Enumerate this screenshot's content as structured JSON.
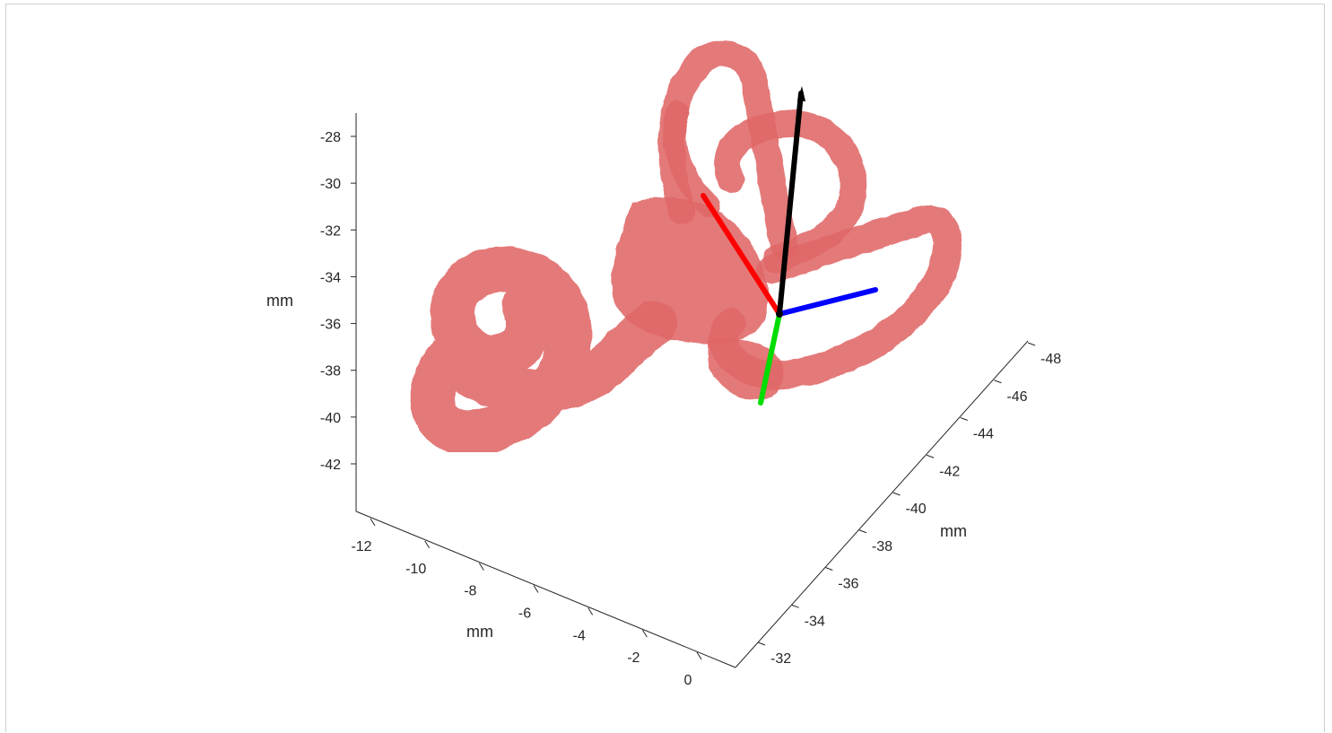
{
  "chart_data": {
    "type": "3d-surface",
    "title": "",
    "surface_color": "#e06666",
    "z_axis": {
      "label": "mm",
      "ticks": [
        -28,
        -30,
        -32,
        -34,
        -36,
        -38,
        -40,
        -42
      ],
      "tick_labels": [
        "-28",
        "-30",
        "-32",
        "-34",
        "-36",
        "-38",
        "-40",
        "-42"
      ]
    },
    "x_axis": {
      "label": "mm",
      "ticks": [
        -12,
        -10,
        -8,
        -6,
        -4,
        -2,
        0
      ],
      "tick_labels": [
        "-12",
        "-10",
        "-8",
        "-6",
        "-4",
        "-2",
        "0"
      ]
    },
    "y_axis": {
      "label": "mm",
      "ticks": [
        -32,
        -34,
        -36,
        -38,
        -40,
        -42,
        -44,
        -46,
        -48
      ],
      "tick_labels": [
        "-32",
        "-34",
        "-36",
        "-38",
        "-40",
        "-42",
        "-44",
        "-46",
        "-48"
      ]
    },
    "vectors": [
      {
        "color": "#000000"
      },
      {
        "color": "#ff0000"
      },
      {
        "color": "#0000ff"
      },
      {
        "color": "#00dd00"
      }
    ],
    "grid": false,
    "legend": "none"
  }
}
